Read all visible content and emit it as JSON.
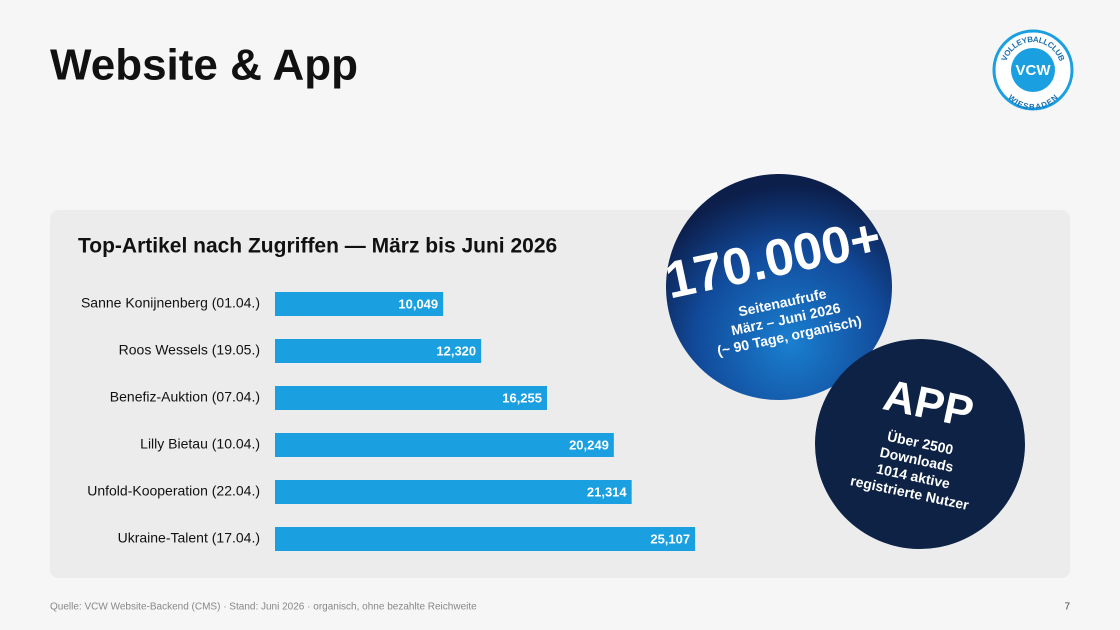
{
  "title": "Website & App",
  "chart_data": {
    "type": "bar",
    "title": "Top-Artikel nach Zugriffen — März bis Juni 2026",
    "categories": [
      "Sanne Konijnenberg (01.04.)",
      "Roos Wessels (19.05.)",
      "Benefiz-Auktion (07.04.)",
      "Lilly Bietau (10.04.)",
      "Unfold-Kooperation (22.04.)",
      "Ukraine-Talent (17.04.)"
    ],
    "values": [
      10049,
      12320,
      16255,
      20249,
      21314,
      25107
    ],
    "value_labels": [
      "10,049",
      "12,320",
      "16,255",
      "20,249",
      "21,314",
      "25,107"
    ],
    "color": "#1a9fe0",
    "xlim": [
      0,
      30000
    ]
  },
  "badge_views": {
    "number": "170.000+",
    "lines": [
      "Seitenaufrufe",
      "März – Juni 2026",
      "(~ 90 Tage, organisch)"
    ]
  },
  "badge_app": {
    "title": "APP",
    "lines": [
      "Über 2500",
      "Downloads",
      "1014 aktive",
      "registrierte Nutzer"
    ]
  },
  "logo": {
    "top": "VOLLEYBALLCLUB",
    "center": "VCW",
    "bottom": "WIESBADEN"
  },
  "footer": "Quelle: VCW Website-Backend (CMS) · Stand: Juni 2026 · organisch, ohne bezahlte Reichweite",
  "page_number": "7"
}
